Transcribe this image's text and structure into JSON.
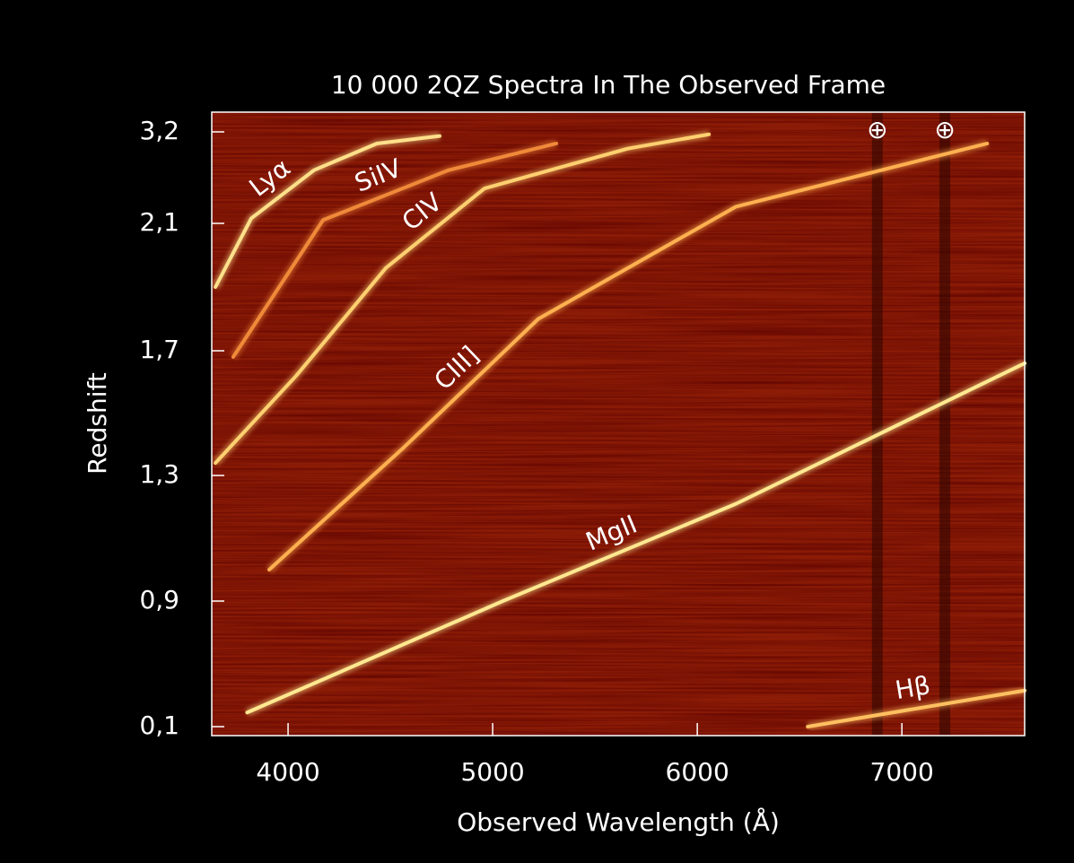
{
  "chart_data": {
    "type": "spectra",
    "title": "10 000 2QZ Spectra In The Observed Frame",
    "xlabel": "Observed Wavelength (Å)",
    "ylabel": "Redshift",
    "xlim": [
      3627,
      7600
    ],
    "xticks": [
      4000,
      5000,
      6000,
      7000
    ],
    "ylim": [
      0.05,
      3.4
    ],
    "yticks": [
      {
        "value": 0.1,
        "label": "0,1"
      },
      {
        "value": 0.9,
        "label": "0,9"
      },
      {
        "value": 1.3,
        "label": "1,3"
      },
      {
        "value": 1.7,
        "label": "1,7"
      },
      {
        "value": 2.1,
        "label": "2,1"
      },
      {
        "value": 3.2,
        "label": "3,2"
      }
    ],
    "background": "#8c1c06",
    "series": [
      {
        "name": "Lyα",
        "color": "#ffe08a",
        "x": [
          3645,
          3820,
          4127,
          4434,
          4741
        ],
        "values": [
          1.9,
          2.16,
          2.74,
          3.06,
          3.15
        ]
      },
      {
        "name": "SiIV",
        "color": "#f08a3a",
        "x": [
          3732,
          4171,
          4785,
          5311
        ],
        "values": [
          1.68,
          2.14,
          2.74,
          3.06
        ]
      },
      {
        "name": "CIV",
        "color": "#ffd070",
        "x": [
          3645,
          4040,
          4478,
          4960,
          5662,
          6057
        ],
        "values": [
          1.34,
          1.62,
          1.96,
          2.52,
          3.0,
          3.17
        ]
      },
      {
        "name": "CIII]",
        "color": "#ffb050",
        "x": [
          3908,
          4566,
          5223,
          6188,
          7417
        ],
        "values": [
          1.0,
          1.39,
          1.8,
          2.3,
          3.06
        ]
      },
      {
        "name": "MgII",
        "color": "#ffe890",
        "x": [
          3800,
          5050,
          6190,
          7600
        ],
        "values": [
          0.19,
          0.9,
          1.21,
          1.66
        ]
      },
      {
        "name": "Hβ",
        "color": "#ffc060",
        "x": [
          6540,
          7600
        ],
        "values": [
          0.1,
          0.33
        ]
      }
    ],
    "annotations": [
      {
        "text": "⊕",
        "x": 6880
      },
      {
        "text": "⊕",
        "x": 7210
      }
    ]
  }
}
